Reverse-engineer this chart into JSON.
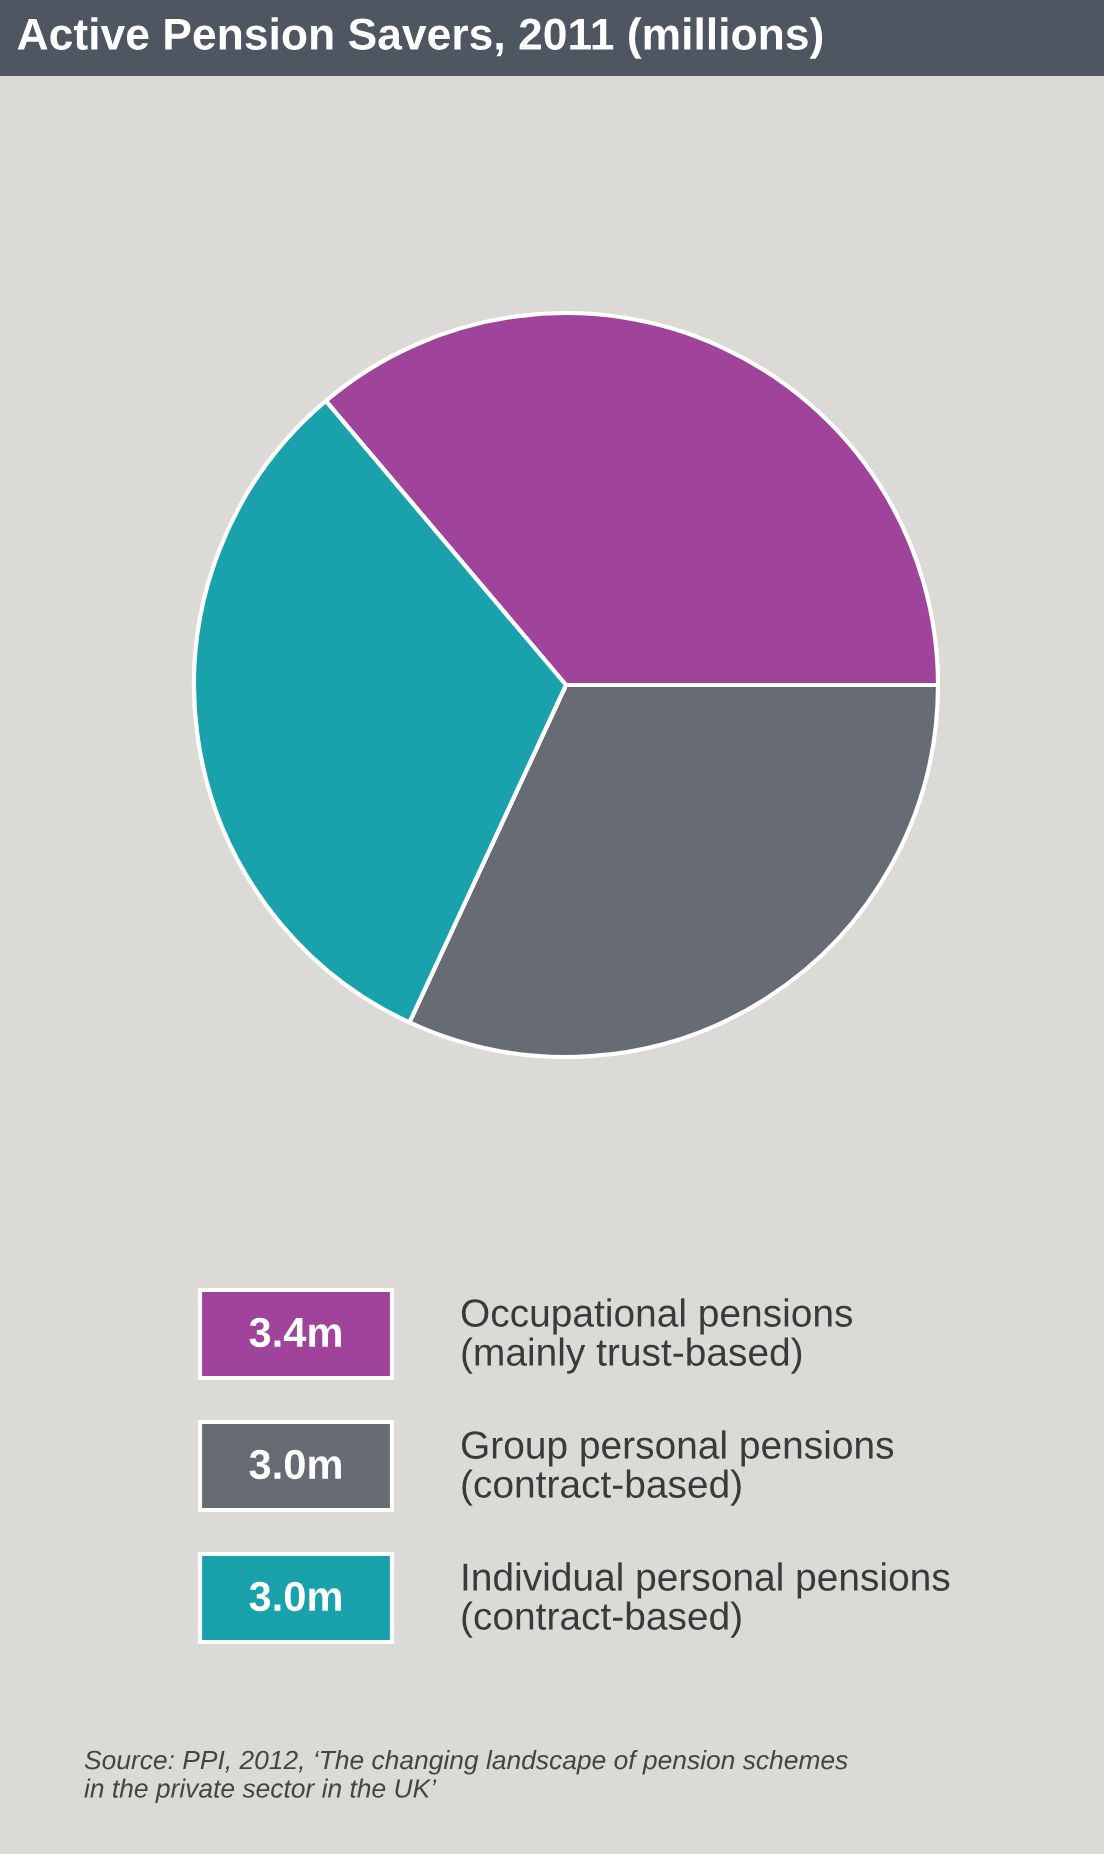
{
  "chart_data": {
    "type": "pie",
    "title": "Active Pension Savers, 2011 (millions)",
    "categories": [
      "Occupational pensions\n(mainly trust-based)",
      "Group personal pensions\n(contract-based)",
      "Individual personal pensions\n(contract-based)"
    ],
    "values": [
      3.4,
      3.0,
      3.0
    ],
    "colors": [
      "#a0439a",
      "#676c74",
      "#1aa2ac"
    ],
    "value_labels": [
      "3.4m",
      "3.0m",
      "3.0m"
    ],
    "legend": "bottom",
    "annotations": [
      "Source: PPI, 2012, ‘The changing landscape of pension schemes\nin the private sector in the UK’"
    ]
  }
}
